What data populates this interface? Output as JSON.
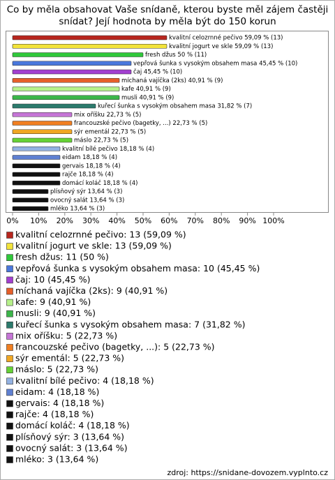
{
  "chart_data": {
    "type": "bar",
    "orientation": "horizontal",
    "title": [
      "Co by měla obsahovat Vaše snídaně, kterou byste měl zájem častěji",
      "snídat? Její hodnota by měla být do 150 korun"
    ],
    "values": [
      59.09,
      59.09,
      50,
      45.45,
      45.45,
      40.91,
      40.91,
      40.91,
      31.82,
      22.73,
      22.73,
      22.73,
      22.73,
      18.18,
      18.18,
      18.18,
      18.18,
      18.18,
      13.64,
      13.64,
      13.64
    ],
    "counts": [
      13,
      13,
      11,
      10,
      10,
      9,
      9,
      9,
      7,
      5,
      5,
      5,
      5,
      4,
      4,
      4,
      4,
      4,
      3,
      3,
      3
    ],
    "value_labels": [
      "kvalitní celozrnné pečivo 59,09 % (13)",
      "kvalitní jogurt ve skle 59,09 % (13)",
      "fresh džus 50 % (11)",
      "vepřová šunka s vysokým obsahem masa 45,45 % (10)",
      "čaj 45,45 % (10)",
      "míchaná vajíčka (2ks) 40,91 % (9)",
      "kafe 40,91 % (9)",
      "musli 40,91 % (9)",
      "kuřecí šunka s vysokým obsahem masa 31,82 % (7)",
      "mix oříšku 22,73 % (5)",
      "francouzské pečivo (bagetky, ...) 22,73 % (5)",
      "sýr ementál 22,73 % (5)",
      "máslo 22,73 % (5)",
      "kvalitní bílé pečivo 18,18 % (4)",
      "eidam 18,18 % (4)",
      "gervais 18,18 % (4)",
      "rajče 18,18 % (4)",
      "domácí koláč 18,18 % (4)",
      "plísňový sýr 13,64 % (3)",
      "ovocný salát 13,64 % (3)",
      "mléko 13,64 % (3)"
    ],
    "legend_labels": [
      "kvalitní celozrnné pečivo: 13 (59,09 %)",
      "kvalitní jogurt ve skle: 13 (59,09 %)",
      "fresh džus: 11 (50 %)",
      "vepřová šunka s vysokým obsahem masa: 10 (45,45 %)",
      "čaj: 10 (45,45 %)",
      "míchaná vajíčka (2ks): 9 (40,91 %)",
      "kafe: 9 (40,91 %)",
      "musli: 9 (40,91 %)",
      "kuřecí šunka s vysokým obsahem masa: 7 (31,82 %)",
      "mix oříšku: 5 (22,73 %)",
      "francouzské pečivo (bagetky, ...): 5 (22,73 %)",
      "sýr ementál: 5 (22,73 %)",
      "máslo: 5 (22,73 %)",
      "kvalitní bílé pečivo: 4 (18,18 %)",
      "eidam: 4 (18,18 %)",
      "gervais: 4 (18,18 %)",
      "rajče: 4 (18,18 %)",
      "domácí koláč: 4 (18,18 %)",
      "plísňový sýr: 3 (13,64 %)",
      "ovocný salát: 3 (13,64 %)",
      "mléko: 3 (13,64 %)"
    ],
    "colors": [
      "#b8261e",
      "#f2e33a",
      "#2fc83a",
      "#4a78dc",
      "#a23fd0",
      "#e65f2a",
      "#b6f08a",
      "#3cb64a",
      "#2b7a6c",
      "#c575d6",
      "#f07f22",
      "#f0a724",
      "#66d236",
      "#93b2e2",
      "#5f80d2",
      "#111111",
      "#111111",
      "#111111",
      "#111111",
      "#111111",
      "#111111"
    ],
    "xlim": [
      0,
      100
    ],
    "xticks": [
      {
        "value": 0,
        "label": "0%"
      },
      {
        "value": 10,
        "label": "10%"
      },
      {
        "value": 20,
        "label": "20%"
      },
      {
        "value": 30,
        "label": "30%"
      },
      {
        "value": 40,
        "label": "40%"
      },
      {
        "value": 50,
        "label": "50%"
      },
      {
        "value": 60,
        "label": "60%"
      },
      {
        "value": 70,
        "label": "70%"
      },
      {
        "value": 80,
        "label": "80%"
      },
      {
        "value": 90,
        "label": "90%"
      },
      {
        "value": 100,
        "label": "100%"
      }
    ],
    "source": "zdroj: https://snidane-dovozem.vyplnto.cz"
  }
}
